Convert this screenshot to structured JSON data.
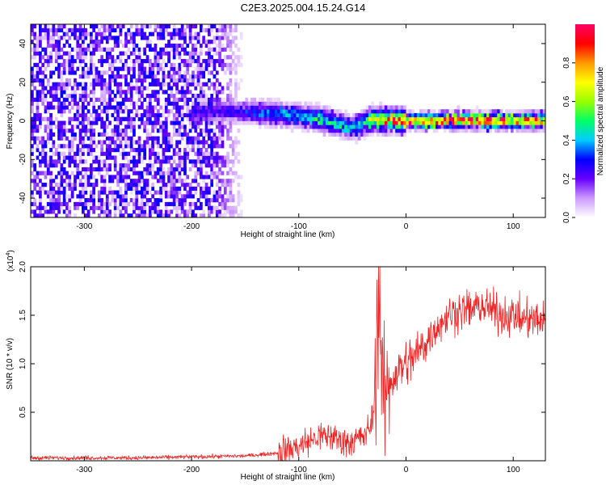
{
  "title": "C2E3.2025.004.15.24.G14",
  "chart_data": [
    {
      "type": "heatmap",
      "xlabel": "Height of straight line (km)",
      "ylabel": "Frequency (Hz)",
      "xlim": [
        -350,
        130
      ],
      "ylim": [
        -50,
        50
      ],
      "xticks": [
        -300,
        -200,
        -100,
        0,
        100
      ],
      "yticks": [
        -40,
        -20,
        0,
        20,
        40
      ],
      "colorbar": {
        "label": "Normalized spectral amplitude",
        "range": [
          0,
          1
        ],
        "ticks": [
          0.0,
          0.2,
          0.4,
          0.6,
          0.8
        ],
        "colors": [
          "#ffffff",
          "#cc99ff",
          "#6600ff",
          "#0000ff",
          "#00ccff",
          "#00ff66",
          "#99ff00",
          "#ffff00",
          "#ff9900",
          "#ff0000",
          "#ff0066"
        ]
      },
      "ridge": {
        "x": [
          -160,
          -140,
          -120,
          -100,
          -80,
          -60,
          -50,
          -40,
          -30,
          -20,
          0,
          50,
          100,
          130
        ],
        "frequency": [
          5,
          4.5,
          3.5,
          2.5,
          1,
          -2,
          -4,
          -1,
          1,
          0.5,
          0,
          0.5,
          0,
          0.5
        ],
        "amplitude": [
          0.25,
          0.35,
          0.4,
          0.45,
          0.5,
          0.45,
          0.4,
          0.5,
          0.7,
          0.8,
          0.9,
          0.95,
          0.9,
          0.85
        ]
      },
      "noise_region": {
        "x_from": -350,
        "x_to": -160,
        "amplitude": 0.15
      }
    },
    {
      "type": "line",
      "xlabel": "Height of straight line (km)",
      "ylabel": "SNR (10 * v/v)",
      "y_multiplier": "(x10",
      "y_multiplier_exp": "4",
      "y_multiplier_close": ")",
      "xlim": [
        -350,
        130
      ],
      "ylim": [
        0,
        2.0
      ],
      "xticks": [
        -300,
        -200,
        -100,
        0,
        100
      ],
      "yticks": [
        0.5,
        1.0,
        1.5,
        2.0
      ],
      "ytick_labels": [
        "0.5",
        "1.0",
        "1.5",
        "2.0"
      ],
      "color": "#ee2222",
      "series": [
        {
          "x": [
            -350,
            -300,
            -250,
            -200,
            -150,
            -120,
            -100,
            -90,
            -80,
            -70,
            -60,
            -50,
            -40,
            -35,
            -30,
            -27,
            -25,
            -23,
            -20,
            -15,
            -10,
            0,
            10,
            20,
            30,
            40,
            50,
            60,
            70,
            80,
            90,
            100,
            110,
            120,
            130
          ],
          "values": [
            0.03,
            0.03,
            0.03,
            0.04,
            0.05,
            0.08,
            0.15,
            0.2,
            0.25,
            0.25,
            0.2,
            0.2,
            0.25,
            0.3,
            0.5,
            1.0,
            1.8,
            0.9,
            0.6,
            0.8,
            0.9,
            1.0,
            1.1,
            1.25,
            1.4,
            1.5,
            1.55,
            1.55,
            1.6,
            1.55,
            1.5,
            1.5,
            1.45,
            1.45,
            1.45
          ]
        }
      ]
    }
  ]
}
